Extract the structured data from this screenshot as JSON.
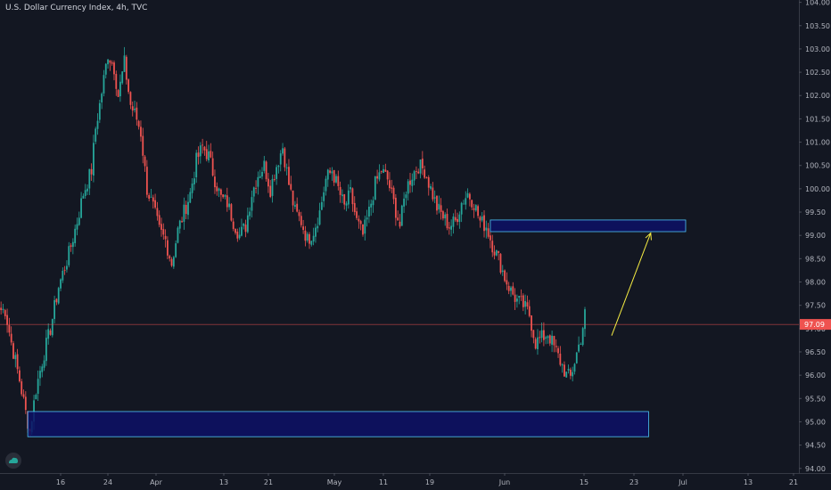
{
  "symbol_title": "U.S. Dollar Currency Index, 4h, TVC",
  "last_price_label": "97.09",
  "colors": {
    "background": "#131722",
    "up": "#26a69a",
    "down": "#ef5350",
    "zone_fill": "#0d1166",
    "zone_stroke": "#4fc3f7",
    "arrow": "#f5ec42",
    "price_line": "#ef5350",
    "axis_text": "#b2b5be"
  },
  "chart_data": {
    "type": "candlestick",
    "title": "U.S. Dollar Currency Index, 4h, TVC",
    "y_ticks": [
      "104.00",
      "103.50",
      "103.00",
      "102.50",
      "102.00",
      "101.50",
      "101.00",
      "100.50",
      "100.00",
      "99.50",
      "99.00",
      "98.50",
      "98.00",
      "97.50",
      "97.00",
      "96.50",
      "96.00",
      "95.50",
      "95.00",
      "94.50",
      "94.00"
    ],
    "x_ticks": [
      "16",
      "24",
      "Apr",
      "13",
      "21",
      "May",
      "11",
      "19",
      "Jun",
      "15",
      "23",
      "Jul",
      "13",
      "21"
    ],
    "ylim": [
      93.9,
      104.05
    ],
    "last_price": 97.09,
    "anchors": [
      [
        0,
        97.4
      ],
      [
        2,
        97.4
      ],
      [
        5,
        96.7
      ],
      [
        9,
        95.9
      ],
      [
        12,
        95.2
      ],
      [
        14,
        94.8
      ],
      [
        17,
        95.7
      ],
      [
        20,
        96.3
      ],
      [
        24,
        97.0
      ],
      [
        28,
        97.9
      ],
      [
        33,
        98.6
      ],
      [
        37,
        99.3
      ],
      [
        40,
        99.9
      ],
      [
        44,
        100.4
      ],
      [
        46,
        101.3
      ],
      [
        48,
        101.8
      ],
      [
        52,
        102.9
      ],
      [
        55,
        102.6
      ],
      [
        57,
        102.0
      ],
      [
        60,
        102.7
      ],
      [
        63,
        101.8
      ],
      [
        66,
        101.5
      ],
      [
        68,
        101.2
      ],
      [
        71,
        100.0
      ],
      [
        74,
        99.6
      ],
      [
        77,
        99.1
      ],
      [
        80,
        98.9
      ],
      [
        83,
        98.4
      ],
      [
        86,
        99.1
      ],
      [
        89,
        99.5
      ],
      [
        92,
        99.9
      ],
      [
        95,
        100.6
      ],
      [
        98,
        100.9
      ],
      [
        101,
        100.7
      ],
      [
        104,
        100.2
      ],
      [
        107,
        99.8
      ],
      [
        110,
        99.7
      ],
      [
        113,
        99.3
      ],
      [
        116,
        99.0
      ],
      [
        119,
        99.2
      ],
      [
        122,
        99.9
      ],
      [
        125,
        100.3
      ],
      [
        128,
        100.5
      ],
      [
        131,
        100.0
      ],
      [
        134,
        100.5
      ],
      [
        137,
        100.9
      ],
      [
        140,
        100.1
      ],
      [
        143,
        99.5
      ],
      [
        146,
        99.3
      ],
      [
        149,
        98.9
      ],
      [
        152,
        99.1
      ],
      [
        155,
        99.5
      ],
      [
        158,
        100.2
      ],
      [
        161,
        100.4
      ],
      [
        164,
        100.0
      ],
      [
        167,
        99.6
      ],
      [
        170,
        99.9
      ],
      [
        173,
        99.3
      ],
      [
        176,
        99.0
      ],
      [
        179,
        99.5
      ],
      [
        182,
        100.1
      ],
      [
        185,
        100.4
      ],
      [
        188,
        100.2
      ],
      [
        191,
        99.7
      ],
      [
        194,
        99.2
      ],
      [
        197,
        100.0
      ],
      [
        200,
        100.3
      ],
      [
        203,
        100.5
      ],
      [
        206,
        100.4
      ],
      [
        209,
        100.0
      ],
      [
        212,
        99.6
      ],
      [
        215,
        99.4
      ],
      [
        218,
        99.2
      ],
      [
        221,
        99.3
      ],
      [
        224,
        99.7
      ],
      [
        227,
        99.9
      ],
      [
        230,
        99.7
      ],
      [
        233,
        99.3
      ],
      [
        236,
        99.2
      ],
      [
        239,
        98.8
      ],
      [
        242,
        98.5
      ],
      [
        245,
        98.1
      ],
      [
        248,
        97.8
      ],
      [
        251,
        97.6
      ],
      [
        254,
        97.5
      ],
      [
        257,
        97.3
      ],
      [
        260,
        96.7
      ],
      [
        263,
        96.8
      ],
      [
        266,
        96.9
      ],
      [
        269,
        96.6
      ],
      [
        272,
        96.3
      ],
      [
        275,
        96.0
      ],
      [
        277,
        95.95
      ],
      [
        279,
        96.3
      ],
      [
        282,
        96.8
      ],
      [
        284,
        97.3
      ]
    ],
    "zones": [
      {
        "from_index": 238,
        "to_index": 333,
        "price_low": 99.08,
        "price_high": 99.33
      },
      {
        "from_index": 13,
        "to_index": 315,
        "price_low": 94.68,
        "price_high": 95.22
      }
    ],
    "arrow": {
      "from_index": 297,
      "from_price": 96.85,
      "to_index": 316,
      "to_price": 99.05
    }
  }
}
